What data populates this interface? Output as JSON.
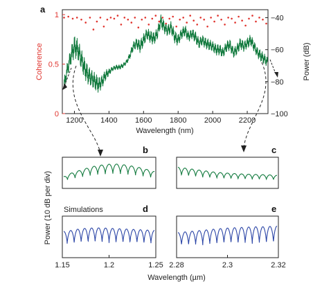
{
  "chart_data": [
    {
      "panel": "a",
      "type": "line",
      "xlabel": "Wavelength (nm)",
      "ylabel_left": "Coherence",
      "ylabel_right": "Power (dB)",
      "xlim": [
        1130,
        2320
      ],
      "left_ylim": [
        0,
        1.05
      ],
      "right_ylim": [
        -100,
        -35
      ],
      "x_ticks": [
        1200,
        1400,
        1600,
        1800,
        2000,
        2200
      ],
      "left_ticks": [
        0,
        0.5,
        1
      ],
      "right_ticks": [
        -40,
        -60,
        -80,
        -100
      ],
      "left_tick_labels": [
        "0",
        "0.5",
        "1"
      ],
      "x_tick_labels": [
        "1200",
        "1400",
        "1600",
        "1800",
        "2000",
        "2200"
      ],
      "right_tick_labels": [
        "−40",
        "−60",
        "−80",
        "−100"
      ],
      "series": [
        {
          "kind": "scatter",
          "axis": "left",
          "color": "#e0342e",
          "x": [
            1140,
            1165,
            1190,
            1215,
            1240,
            1265,
            1290,
            1310,
            1330,
            1350,
            1370,
            1390,
            1410,
            1430,
            1450,
            1470,
            1490,
            1510,
            1530,
            1550,
            1570,
            1590,
            1610,
            1630,
            1650,
            1670,
            1690,
            1710,
            1730,
            1750,
            1770,
            1790,
            1810,
            1830,
            1850,
            1870,
            1890,
            1910,
            1930,
            1950,
            1970,
            1990,
            2010,
            2030,
            2050,
            2070,
            2090,
            2110,
            2130,
            2150,
            2170,
            2190,
            2210,
            2230,
            2250,
            2270,
            2290,
            2310
          ],
          "y": [
            0.97,
            0.98,
            0.96,
            0.97,
            0.95,
            0.92,
            0.97,
            0.85,
            0.93,
            0.97,
            0.88,
            0.95,
            0.97,
            0.96,
            0.99,
            0.9,
            0.97,
            0.95,
            0.92,
            0.97,
            0.87,
            0.95,
            0.97,
            0.9,
            0.96,
            0.99,
            0.93,
            0.97,
            0.91,
            0.96,
            0.98,
            0.88,
            0.95,
            0.97,
            0.92,
            0.99,
            0.94,
            0.9,
            0.97,
            0.95,
            0.88,
            0.97,
            0.93,
            0.99,
            0.95,
            0.9,
            0.97,
            0.96,
            0.92,
            0.98,
            0.94,
            0.89,
            0.96,
            0.99,
            0.93,
            0.97,
            0.95,
            0.91
          ]
        },
        {
          "kind": "line",
          "axis": "right",
          "color": "#127a3e",
          "x": [
            1140,
            1160,
            1180,
            1200,
            1220,
            1240,
            1260,
            1280,
            1300,
            1320,
            1340,
            1360,
            1380,
            1400,
            1420,
            1440,
            1460,
            1480,
            1500,
            1520,
            1540,
            1560,
            1580,
            1600,
            1620,
            1640,
            1660,
            1680,
            1700,
            1720,
            1740,
            1760,
            1780,
            1800,
            1820,
            1840,
            1860,
            1880,
            1900,
            1920,
            1940,
            1960,
            1980,
            2000,
            2020,
            2040,
            2060,
            2080,
            2100,
            2120,
            2140,
            2160,
            2180,
            2200,
            2220,
            2240,
            2260,
            2280,
            2300,
            2320
          ],
          "y": [
            -82,
            -72,
            -64,
            -58,
            -60,
            -66,
            -72,
            -76,
            -78,
            -80,
            -82,
            -80,
            -76,
            -74,
            -72,
            -71,
            -71,
            -70,
            -68,
            -64,
            -58,
            -56,
            -58,
            -54,
            -50,
            -52,
            -53,
            -50,
            -42,
            -46,
            -48,
            -46,
            -52,
            -54,
            -50,
            -48,
            -52,
            -50,
            -52,
            -56,
            -54,
            -56,
            -57,
            -58,
            -60,
            -60,
            -62,
            -58,
            -57,
            -62,
            -60,
            -56,
            -58,
            -56,
            -54,
            -58,
            -62,
            -64,
            -66,
            -68
          ],
          "ripple_db": [
            8,
            10,
            12,
            14,
            14,
            14,
            13,
            12,
            12,
            11,
            10,
            9,
            7,
            4,
            3,
            3,
            3,
            3,
            3,
            4,
            6,
            7,
            8,
            8,
            8,
            8,
            8,
            8,
            8,
            8,
            8,
            8,
            8,
            8,
            7,
            7,
            7,
            7,
            7,
            7,
            7,
            7,
            7,
            7,
            7,
            7,
            7,
            7,
            7,
            7,
            7,
            7,
            7,
            7,
            7,
            7,
            7,
            7,
            7,
            7
          ]
        }
      ]
    },
    {
      "panel": "b",
      "type": "line",
      "x_range_um": [
        1.15,
        1.25
      ],
      "color": "#127a3e",
      "fringe_periods": 12,
      "envelope": [
        0.35,
        0.5,
        0.6,
        0.7,
        0.78,
        0.82,
        0.85,
        0.83,
        0.78,
        0.72,
        0.64,
        0.55
      ],
      "depth": 0.45
    },
    {
      "panel": "c",
      "type": "line",
      "x_range_um": [
        2.28,
        2.32
      ],
      "color": "#127a3e",
      "fringe_periods": 14,
      "envelope": [
        0.72,
        0.68,
        0.64,
        0.6,
        0.56,
        0.52,
        0.5,
        0.48,
        0.46,
        0.45,
        0.44,
        0.43,
        0.42,
        0.4
      ],
      "depth": 0.45
    },
    {
      "panel": "d",
      "type": "line",
      "x_range_um": [
        1.15,
        1.25
      ],
      "x_ticks": [
        1.15,
        1.2,
        1.25
      ],
      "x_tick_labels": [
        "1.15",
        "1.2",
        "1.25"
      ],
      "color": "#2a44a6",
      "fringe_periods": 13,
      "envelope": [
        0.65,
        0.68,
        0.72,
        0.74,
        0.75,
        0.75,
        0.74,
        0.73,
        0.72,
        0.71,
        0.7,
        0.69,
        0.68
      ],
      "depth": 0.55
    },
    {
      "panel": "e",
      "type": "line",
      "x_range_um": [
        2.28,
        2.32
      ],
      "x_ticks": [
        2.28,
        2.3,
        2.32
      ],
      "x_tick_labels": [
        "2.28",
        "2.3",
        "2.32"
      ],
      "color": "#2a44a6",
      "fringe_periods": 14,
      "envelope": [
        0.62,
        0.64,
        0.66,
        0.68,
        0.7,
        0.72,
        0.74,
        0.75,
        0.76,
        0.77,
        0.78,
        0.78,
        0.79,
        0.8
      ],
      "depth": 0.6
    }
  ],
  "labels": {
    "panel_a": "a",
    "panel_b": "b",
    "panel_c": "c",
    "panel_d": "d",
    "panel_e": "e",
    "small_ylabel": "Power (10 dB per div)",
    "small_xlabel": "Wavelength (µm)",
    "simulations": "Simulations",
    "x_ticks_d": [
      "1.15",
      "1.2",
      "1.25"
    ],
    "x_ticks_e": [
      "2.28",
      "2.3",
      "2.32"
    ]
  },
  "colors": {
    "measured": "#127a3e",
    "simulated": "#2a44a6",
    "coherence": "#e0342e"
  }
}
